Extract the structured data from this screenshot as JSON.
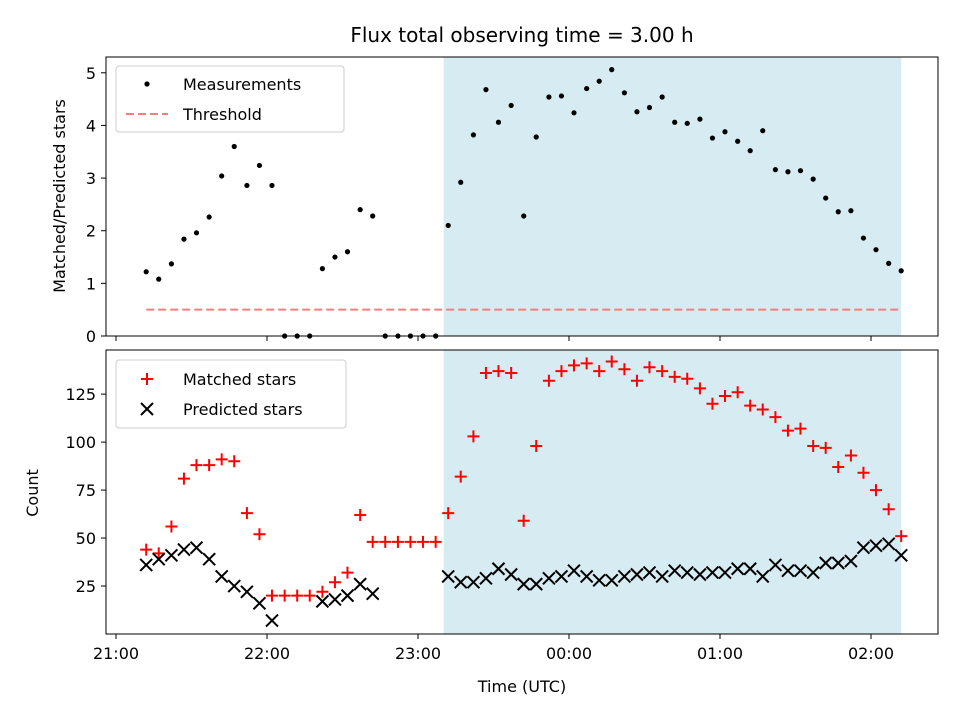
{
  "chart_data": [
    {
      "type": "scatter",
      "title": "Flux total observing time = 3.00 h",
      "xlabel": "",
      "ylabel": "Matched/Predicted stars",
      "x_ticks": [
        "21:00",
        "22:00",
        "23:00",
        "00:00",
        "01:00",
        "02:00"
      ],
      "x_range_hours": [
        20.95,
        26.45
      ],
      "ylim": [
        0,
        5.3
      ],
      "y_ticks": [
        0,
        1,
        2,
        3,
        4,
        5
      ],
      "shaded_region_hours": [
        23.17,
        26.2
      ],
      "shaded_color": "#add8e6",
      "legend": {
        "location": "upper left",
        "entries": [
          "Measurements",
          "Threshold"
        ]
      },
      "series": [
        {
          "name": "Measurements",
          "marker": "dot",
          "color": "#000000",
          "x_hours": [
            21.2,
            21.283,
            21.367,
            21.45,
            21.533,
            21.617,
            21.7,
            21.783,
            21.867,
            21.95,
            22.033,
            22.117,
            22.2,
            22.283,
            22.367,
            22.45,
            22.533,
            22.617,
            22.7,
            22.783,
            22.867,
            22.95,
            23.033,
            23.117,
            23.2,
            23.283,
            23.367,
            23.45,
            23.533,
            23.617,
            23.7,
            23.783,
            23.867,
            23.95,
            24.033,
            24.117,
            24.2,
            24.283,
            24.367,
            24.45,
            24.533,
            24.617,
            24.7,
            24.783,
            24.867,
            24.95,
            25.033,
            25.117,
            25.2,
            25.283,
            25.367,
            25.45,
            25.533,
            25.617,
            25.7,
            25.783,
            25.867,
            25.95,
            26.033,
            26.117,
            26.2
          ],
          "y": [
            1.22,
            1.08,
            1.37,
            1.84,
            1.96,
            2.26,
            3.04,
            3.6,
            2.86,
            3.24,
            2.86,
            0.0,
            0.0,
            0.0,
            1.28,
            1.5,
            1.6,
            2.4,
            2.28,
            0.0,
            0.0,
            0.0,
            0.0,
            0.0,
            2.1,
            2.92,
            3.82,
            4.68,
            4.06,
            4.38,
            2.28,
            3.78,
            4.54,
            4.56,
            4.24,
            4.7,
            4.84,
            5.06,
            4.62,
            4.26,
            4.34,
            4.54,
            4.06,
            4.04,
            4.12,
            3.76,
            3.88,
            3.7,
            3.52,
            3.9,
            3.16,
            3.12,
            3.14,
            2.98,
            2.62,
            2.36,
            2.38,
            1.86,
            1.64,
            1.38,
            1.24
          ]
        },
        {
          "name": "Threshold",
          "style": "dashed",
          "color": "#f08080",
          "x_hours": [
            21.2,
            26.2
          ],
          "y": [
            0.5,
            0.5
          ]
        }
      ]
    },
    {
      "type": "scatter",
      "xlabel": "Time (UTC)",
      "ylabel": "Count",
      "x_ticks": [
        "21:00",
        "22:00",
        "23:00",
        "00:00",
        "01:00",
        "02:00"
      ],
      "x_range_hours": [
        20.95,
        26.45
      ],
      "ylim": [
        0,
        148
      ],
      "y_ticks": [
        25,
        50,
        75,
        100,
        125
      ],
      "shaded_region_hours": [
        23.17,
        26.2
      ],
      "shaded_color": "#add8e6",
      "legend": {
        "location": "upper left",
        "entries": [
          "Matched stars",
          "Predicted stars"
        ]
      },
      "series": [
        {
          "name": "Matched stars",
          "marker": "+",
          "color": "#ff0000",
          "x_hours": [
            21.2,
            21.283,
            21.367,
            21.45,
            21.533,
            21.617,
            21.7,
            21.783,
            21.867,
            21.95,
            22.033,
            22.117,
            22.2,
            22.283,
            22.367,
            22.45,
            22.533,
            22.617,
            22.7,
            22.783,
            22.867,
            22.95,
            23.033,
            23.117,
            23.2,
            23.283,
            23.367,
            23.45,
            23.533,
            23.617,
            23.7,
            23.783,
            23.867,
            23.95,
            24.033,
            24.117,
            24.2,
            24.283,
            24.367,
            24.45,
            24.533,
            24.617,
            24.7,
            24.783,
            24.867,
            24.95,
            25.033,
            25.117,
            25.2,
            25.283,
            25.367,
            25.45,
            25.533,
            25.617,
            25.7,
            25.783,
            25.867,
            25.95,
            26.033,
            26.117,
            26.2
          ],
          "y": [
            44,
            42,
            56,
            81,
            88,
            88,
            91,
            90,
            63,
            52,
            20,
            20,
            20,
            20,
            22,
            27,
            32,
            62,
            48,
            48,
            48,
            48,
            48,
            48,
            63,
            82,
            103,
            136,
            137,
            136,
            59,
            98,
            132,
            137,
            140,
            141,
            137,
            142,
            138,
            132,
            139,
            137,
            134,
            133,
            128,
            120,
            124,
            126,
            119,
            117,
            113,
            106,
            107,
            98,
            97,
            87,
            93,
            84,
            75,
            65,
            51
          ]
        },
        {
          "name": "Predicted stars",
          "marker": "x",
          "color": "#000000",
          "x_hours": [
            21.2,
            21.283,
            21.367,
            21.45,
            21.533,
            21.617,
            21.7,
            21.783,
            21.867,
            21.95,
            22.033,
            22.367,
            22.45,
            22.533,
            22.617,
            22.7,
            23.2,
            23.283,
            23.367,
            23.45,
            23.533,
            23.617,
            23.7,
            23.783,
            23.867,
            23.95,
            24.033,
            24.117,
            24.2,
            24.283,
            24.367,
            24.45,
            24.533,
            24.617,
            24.7,
            24.783,
            24.867,
            24.95,
            25.033,
            25.117,
            25.2,
            25.283,
            25.367,
            25.45,
            25.533,
            25.617,
            25.7,
            25.783,
            25.867,
            25.95,
            26.033,
            26.117,
            26.2
          ],
          "y": [
            36,
            39,
            41,
            44,
            45,
            39,
            30,
            25,
            22,
            16,
            7,
            17,
            18,
            20,
            26,
            21,
            30,
            27,
            27,
            29,
            34,
            31,
            26,
            26,
            29,
            30,
            33,
            30,
            28,
            28,
            30,
            31,
            32,
            30,
            33,
            32,
            31,
            32,
            32,
            34,
            34,
            30,
            36,
            33,
            33,
            32,
            37,
            37,
            38,
            45,
            46,
            47,
            41
          ]
        }
      ]
    }
  ]
}
